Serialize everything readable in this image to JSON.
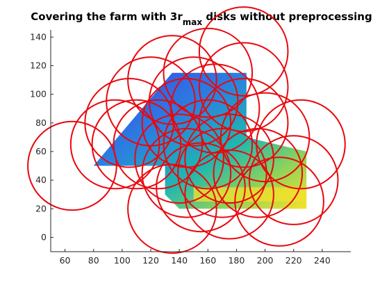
{
  "chart_data": {
    "type": "scatter",
    "title": {
      "prefix": "Covering the farm with 3r",
      "subscript": "max",
      "suffix": " disks without preprocessing"
    },
    "xlabel": "",
    "ylabel": "",
    "xlim": [
      50,
      260
    ],
    "ylim": [
      -10,
      145
    ],
    "xticks": [
      60,
      80,
      100,
      120,
      140,
      160,
      180,
      200,
      220,
      240
    ],
    "yticks": [
      0,
      20,
      40,
      60,
      80,
      100,
      120,
      140
    ],
    "grid": false,
    "colors": {
      "disk": "#e8080e",
      "axis": "#262626",
      "farm_low": "#3b3fe6",
      "farm_mid": "#1fb7b0",
      "farm_high": "#f6e22a"
    },
    "farm_region": {
      "outline": [
        [
          80,
          50
        ],
        [
          135,
          115
        ],
        [
          187,
          115
        ],
        [
          187,
          70
        ],
        [
          229,
          60
        ],
        [
          229,
          20
        ],
        [
          140,
          20
        ],
        [
          130,
          30
        ],
        [
          130,
          50
        ]
      ]
    },
    "disk_radius": 31,
    "disks": [
      {
        "x": 65,
        "y": 50
      },
      {
        "x": 95,
        "y": 65
      },
      {
        "x": 105,
        "y": 80
      },
      {
        "x": 120,
        "y": 95
      },
      {
        "x": 135,
        "y": 110
      },
      {
        "x": 160,
        "y": 115
      },
      {
        "x": 185,
        "y": 105
      },
      {
        "x": 125,
        "y": 65
      },
      {
        "x": 145,
        "y": 80
      },
      {
        "x": 165,
        "y": 90
      },
      {
        "x": 185,
        "y": 80
      },
      {
        "x": 140,
        "y": 55
      },
      {
        "x": 160,
        "y": 65
      },
      {
        "x": 175,
        "y": 55
      },
      {
        "x": 200,
        "y": 70
      },
      {
        "x": 225,
        "y": 65
      },
      {
        "x": 135,
        "y": 20
      },
      {
        "x": 155,
        "y": 35
      },
      {
        "x": 175,
        "y": 30
      },
      {
        "x": 195,
        "y": 45
      },
      {
        "x": 210,
        "y": 25
      },
      {
        "x": 220,
        "y": 40
      },
      {
        "x": 145,
        "y": 45
      },
      {
        "x": 170,
        "y": 45
      },
      {
        "x": 110,
        "y": 65
      },
      {
        "x": 150,
        "y": 95
      },
      {
        "x": 185,
        "y": 130
      }
    ]
  }
}
